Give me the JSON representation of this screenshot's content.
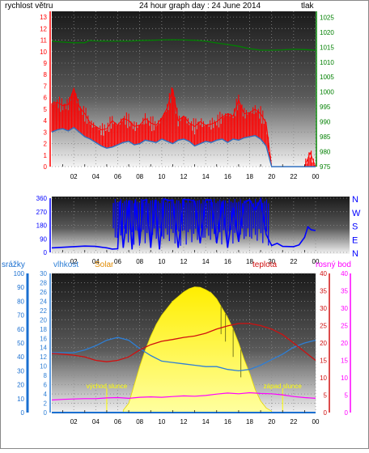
{
  "header": {
    "title": "24 hour graph day : 24 June 2014",
    "left_label": "rychlost větru",
    "right_label": "tlak"
  },
  "colors": {
    "wind": "#ff0000",
    "wind_avg": "#3070c0",
    "pressure": "#008000",
    "direction": "#0000ff",
    "humidity": "#2e7fd6",
    "temperature": "#d01010",
    "dewpoint": "#ff00ff",
    "rain": "#1a6fd0",
    "solar": "#ffff20"
  },
  "chart_data": [
    {
      "type": "line",
      "title": "24 hour graph day : 24 June 2014",
      "x_ticks": [
        "02",
        "04",
        "06",
        "08",
        "10",
        "12",
        "14",
        "16",
        "18",
        "20",
        "22",
        "00"
      ],
      "left_axis": {
        "label": "rychlost větru",
        "ticks": [
          0,
          1,
          2,
          3,
          4,
          5,
          6,
          7,
          8,
          9,
          10,
          11,
          12,
          13
        ],
        "ylim": [
          0,
          13.5
        ]
      },
      "right_axis": {
        "label": "tlak",
        "ticks": [
          975,
          980,
          985,
          990,
          995,
          1000,
          1005,
          1010,
          1015,
          1020,
          1025
        ],
        "ylim": [
          975,
          1027
        ]
      },
      "series": [
        {
          "key": "pressure",
          "axis": "right",
          "x": [
            0,
            1.0,
            2.0,
            3.0,
            3.4,
            4.0,
            5.0,
            6.0,
            7.0,
            8.0,
            9.0,
            10.0,
            11.0,
            12.0,
            13.0,
            14.0,
            15.0,
            16.0,
            17.0,
            18.0,
            19.0,
            20.0,
            21.0,
            22.0,
            23.0,
            24.0
          ],
          "y": [
            1017,
            1016.7,
            1016.5,
            1016.5,
            1017.2,
            1017.1,
            1017,
            1017,
            1017,
            1017.2,
            1017.3,
            1017.4,
            1017.5,
            1017.4,
            1017.3,
            1017,
            1016.4,
            1015.9,
            1015.3,
            1014.5,
            1014,
            1014,
            1014.1,
            1014.3,
            1014.2,
            1014
          ]
        },
        {
          "key": "wind_avg",
          "axis": "left",
          "x": [
            0,
            0.5,
            1,
            1.5,
            2,
            2.5,
            3,
            3.5,
            4,
            4.5,
            5,
            5.5,
            6,
            6.5,
            7,
            7.5,
            8,
            8.5,
            9,
            9.5,
            10,
            10.5,
            11,
            11.5,
            12,
            12.5,
            13,
            13.5,
            14,
            14.5,
            15,
            15.5,
            16,
            16.5,
            17,
            17.5,
            18,
            18.5,
            19,
            19.5,
            20,
            20.5,
            21,
            21.5,
            22,
            22.5,
            23,
            23.5,
            24
          ],
          "y": [
            3.0,
            3.2,
            3.3,
            3.1,
            3.4,
            3.0,
            2.6,
            2.4,
            2.1,
            1.8,
            1.6,
            1.7,
            1.9,
            2.1,
            2.2,
            1.9,
            2.0,
            2.3,
            2.2,
            2.1,
            2.4,
            2.2,
            2.0,
            2.3,
            2.4,
            2.2,
            1.8,
            2.0,
            2.2,
            2.1,
            2.3,
            2.4,
            2.1,
            2.4,
            2.3,
            2.5,
            2.6,
            2.7,
            2.4,
            1.8,
            0,
            0,
            0,
            0,
            0,
            0,
            0,
            0,
            0
          ]
        },
        {
          "key": "wind_gust",
          "axis": "left",
          "x": [
            0,
            0.5,
            1,
            1.5,
            2,
            2.5,
            3,
            3.5,
            4,
            4.5,
            5,
            5.5,
            6,
            6.5,
            7,
            7.5,
            8,
            8.5,
            9,
            9.5,
            10,
            10.5,
            11,
            11.5,
            12,
            12.5,
            13,
            13.5,
            14,
            14.5,
            15,
            15.5,
            16,
            16.5,
            17,
            17.5,
            18,
            18.5,
            19,
            19.5,
            20,
            20.5,
            21,
            21.5,
            22,
            22.5,
            23,
            23.5,
            24
          ],
          "y": [
            5.5,
            5.6,
            5.3,
            5.4,
            6.8,
            5.2,
            4.6,
            3.8,
            3.5,
            3.2,
            3.3,
            4.0,
            3.6,
            4.2,
            4.0,
            3.5,
            3.6,
            4.2,
            3.8,
            3.6,
            4.2,
            5.1,
            6.8,
            4.0,
            4.4,
            3.8,
            3.5,
            3.9,
            3.6,
            3.7,
            3.9,
            4.3,
            4.6,
            4.4,
            5.8,
            4.6,
            4.7,
            5.0,
            4.6,
            3.8,
            0,
            0,
            0,
            0,
            0,
            0,
            0,
            1.2,
            0
          ]
        }
      ]
    },
    {
      "type": "line",
      "x_ticks": [
        "02",
        "04",
        "06",
        "08",
        "10",
        "12",
        "14",
        "16",
        "18",
        "20",
        "22",
        "00"
      ],
      "left_axis": {
        "ticks": [
          0,
          90,
          180,
          270,
          360
        ],
        "ylim": [
          0,
          360
        ]
      },
      "right_labels": [
        "N",
        "W",
        "S",
        "E",
        "N"
      ],
      "series": [
        {
          "key": "direction",
          "x": [
            0,
            1,
            2,
            3,
            4,
            5,
            5.5,
            6,
            6.2,
            6.5,
            7,
            7.3,
            7.6,
            8,
            8.3,
            8.6,
            9,
            9.4,
            9.8,
            10.2,
            10.6,
            11,
            11.5,
            12,
            12.5,
            13,
            13.5,
            14,
            14.5,
            15,
            15.5,
            16,
            16.5,
            17,
            17.5,
            18,
            18.5,
            19,
            19.5,
            20,
            20.5,
            21,
            22,
            22.5,
            23,
            23.3,
            23.6,
            24
          ],
          "y": [
            30,
            34,
            38,
            42,
            40,
            30,
            22,
            24,
            340,
            30,
            345,
            20,
            350,
            60,
            345,
            350,
            30,
            350,
            20,
            355,
            345,
            348,
            30,
            352,
            350,
            340,
            60,
            350,
            348,
            60,
            340,
            30,
            300,
            70,
            330,
            350,
            280,
            355,
            120,
            45,
            60,
            40,
            38,
            50,
            100,
            170,
            150,
            145
          ]
        }
      ]
    },
    {
      "type": "line",
      "x_ticks": [
        "02",
        "04",
        "06",
        "08",
        "10",
        "12",
        "14",
        "16",
        "18",
        "20",
        "22",
        "00"
      ],
      "axes": {
        "srazky": {
          "label": "srážky",
          "ticks": [
            0,
            10,
            20,
            30,
            40,
            50,
            60,
            70,
            80,
            90,
            100
          ],
          "ylim": [
            0,
            100
          ]
        },
        "vlhkost": {
          "label": "vlhkost",
          "ticks": [
            0,
            2,
            4,
            6,
            8,
            10,
            12,
            14,
            16,
            18,
            20,
            22,
            24,
            26,
            28,
            30
          ],
          "ylim": [
            0,
            30
          ]
        },
        "teplota": {
          "label": "teplota",
          "ticks": [
            0,
            5,
            10,
            15,
            20,
            25,
            30,
            35,
            40
          ],
          "ylim": [
            0,
            40
          ]
        },
        "rosny_bod": {
          "label": "rosný bod",
          "ticks": [
            0,
            5,
            10,
            15,
            20,
            25,
            30,
            35,
            40
          ],
          "ylim": [
            0,
            40
          ]
        }
      },
      "legend": [
        "srážky",
        "vlhkost",
        "Solar",
        "teplota",
        "rosný bod"
      ],
      "annotations": [
        "východ slunce",
        "západ slunce"
      ],
      "annotation_hours": [
        5.0,
        21.0
      ],
      "series": [
        {
          "key": "solar",
          "axis": "vlhkost",
          "x": [
            6.5,
            7,
            7.5,
            8,
            8.5,
            9,
            9.5,
            10,
            10.5,
            11,
            11.5,
            12,
            12.5,
            13,
            13.5,
            14,
            14.5,
            15,
            15.5,
            16,
            16.5,
            17,
            17.5,
            18,
            18.5,
            19,
            19.5,
            20
          ],
          "y": [
            0.5,
            2,
            6,
            10,
            13.5,
            16.5,
            19,
            21,
            22.5,
            24,
            25,
            26,
            26.7,
            27.1,
            27,
            26.5,
            25.8,
            24.5,
            22.5,
            20.5,
            18,
            15,
            11.5,
            8.5,
            5,
            2.5,
            1,
            0.3
          ]
        },
        {
          "key": "humidity",
          "axis": "srazky",
          "x": [
            0,
            1,
            2,
            3,
            4,
            5,
            6,
            7,
            8,
            9,
            10,
            11,
            12,
            13,
            14,
            15,
            16,
            17,
            18,
            19,
            20,
            21,
            22,
            23,
            24
          ],
          "y": [
            43,
            43,
            43,
            45,
            48,
            52,
            54,
            52,
            46,
            41,
            37,
            36,
            35,
            34,
            33,
            33,
            31,
            30,
            31,
            34,
            38,
            42,
            47,
            50,
            52
          ]
        },
        {
          "key": "temperature",
          "axis": "teplota",
          "x": [
            0,
            1,
            2,
            3,
            4,
            5,
            6,
            7,
            8,
            9,
            10,
            11,
            12,
            13,
            14,
            15,
            16,
            17,
            18,
            19,
            20,
            21,
            22,
            23,
            24
          ],
          "y": [
            17,
            16.8,
            16.5,
            16,
            15,
            14.6,
            15,
            16,
            18,
            19.5,
            20.5,
            21,
            21.6,
            22,
            22.8,
            24,
            24.9,
            25.6,
            25.6,
            25,
            24,
            22.4,
            20,
            17.5,
            15
          ]
        },
        {
          "key": "dewpoint",
          "axis": "rosny_bod",
          "x": [
            0,
            1,
            2,
            3,
            4,
            5,
            6,
            7,
            8,
            9,
            10,
            11,
            12,
            13,
            14,
            15,
            16,
            17,
            18,
            19,
            20,
            21,
            22,
            23,
            24
          ],
          "y": [
            3.6,
            3.8,
            3.9,
            4.0,
            4.0,
            4.2,
            4.3,
            4.1,
            4.4,
            4.5,
            4.4,
            4.6,
            4.8,
            4.7,
            4.9,
            5.3,
            5.6,
            5.4,
            5.7,
            5.5,
            5.4,
            5.1,
            4.6,
            4.3,
            4.1
          ]
        },
        {
          "key": "rain",
          "axis": "srazky",
          "x": [
            0,
            24
          ],
          "y": [
            0,
            0
          ]
        }
      ]
    }
  ]
}
